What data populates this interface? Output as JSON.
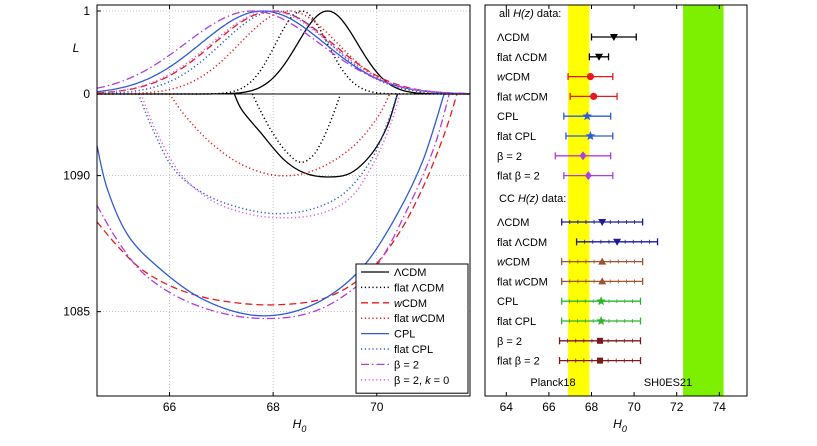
{
  "chart_data": [
    {
      "type": "line",
      "xlabel": "H_0",
      "xlim": [
        64.6,
        71.8
      ],
      "x_ticks": [
        "66",
        "68",
        "70"
      ],
      "top_panel": {
        "ylabel": "L",
        "y_ticks": [
          "0",
          "1"
        ],
        "ylim": [
          0,
          1
        ]
      },
      "bottom_panel": {
        "y_ticks": [
          "1090",
          "1085"
        ],
        "ylim": [
          1081.9,
          1093
        ],
        "inverted": true
      },
      "legend_position": "bottom-right",
      "series": [
        {
          "name": "ΛCDM",
          "label_parts": [
            "ΛCDM"
          ],
          "color": "#000000",
          "dash": "solid",
          "likelihood": {
            "mean": 69.05,
            "sigma": 0.58
          },
          "contour": [
            [
              67.25,
              1093
            ],
            [
              67.4,
              1092.4
            ],
            [
              67.75,
              1091.6
            ],
            [
              68.2,
              1090.6
            ],
            [
              68.6,
              1090.1
            ],
            [
              69.05,
              1089.95
            ],
            [
              69.5,
              1090.1
            ],
            [
              69.9,
              1090.8
            ],
            [
              70.2,
              1091.8
            ],
            [
              70.4,
              1093
            ]
          ]
        },
        {
          "name": "flat ΛCDM",
          "label_parts": [
            "flat ΛCDM"
          ],
          "color": "#000000",
          "dash": "dotted",
          "likelihood": {
            "mean": 68.55,
            "sigma": 0.5
          },
          "contour": [
            [
              67.6,
              1093
            ],
            [
              67.75,
              1092.4
            ],
            [
              67.95,
              1091.7
            ],
            [
              68.2,
              1091.0
            ],
            [
              68.5,
              1090.5
            ],
            [
              68.75,
              1090.7
            ],
            [
              68.95,
              1091.3
            ],
            [
              69.15,
              1092.2
            ],
            [
              69.3,
              1093
            ]
          ]
        },
        {
          "name": "wCDM",
          "label_parts": [
            "w",
            "CDM"
          ],
          "color": "#e8191c",
          "dash": "dashed",
          "likelihood": {
            "mean": 68.0,
            "sigma": 1.15
          },
          "contour": [
            [
              64.6,
              1088.3
            ],
            [
              65.0,
              1087.4
            ],
            [
              65.5,
              1086.5
            ],
            [
              66.2,
              1085.8
            ],
            [
              67.0,
              1085.4
            ],
            [
              68.0,
              1085.25
            ],
            [
              69.0,
              1085.5
            ],
            [
              69.8,
              1086.4
            ],
            [
              70.4,
              1087.8
            ],
            [
              70.9,
              1089.6
            ],
            [
              71.3,
              1091.5
            ],
            [
              71.55,
              1093
            ]
          ]
        },
        {
          "name": "flat wCDM",
          "label_parts": [
            "flat ",
            "w",
            "CDM"
          ],
          "color": "#e8191c",
          "dash": "dotted",
          "likelihood": {
            "mean": 68.3,
            "sigma": 0.95
          },
          "contour": [
            [
              66.0,
              1093
            ],
            [
              66.3,
              1092.2
            ],
            [
              66.8,
              1091.2
            ],
            [
              67.4,
              1090.4
            ],
            [
              68.1,
              1090.0
            ],
            [
              68.8,
              1090.2
            ],
            [
              69.5,
              1091.0
            ],
            [
              70.0,
              1092.1
            ],
            [
              70.25,
              1093
            ]
          ]
        },
        {
          "name": "CPL",
          "label_parts": [
            "CPL"
          ],
          "color": "#2d5bd8",
          "dash": "solid",
          "likelihood": {
            "mean": 67.8,
            "sigma": 1.2
          },
          "contour": [
            [
              64.6,
              1091.1
            ],
            [
              64.8,
              1089.5
            ],
            [
              65.2,
              1087.8
            ],
            [
              65.8,
              1086.6
            ],
            [
              66.6,
              1085.5
            ],
            [
              67.5,
              1084.9
            ],
            [
              68.3,
              1084.95
            ],
            [
              69.1,
              1085.6
            ],
            [
              69.8,
              1086.8
            ],
            [
              70.4,
              1088.6
            ],
            [
              70.9,
              1090.6
            ],
            [
              71.3,
              1093
            ]
          ]
        },
        {
          "name": "flat CPL",
          "label_parts": [
            "flat CPL"
          ],
          "color": "#2d5bd8",
          "dash": "dotted",
          "likelihood": {
            "mean": 68.05,
            "sigma": 1.05
          },
          "contour": [
            [
              65.4,
              1093
            ],
            [
              65.7,
              1091.6
            ],
            [
              66.1,
              1090.2
            ],
            [
              66.7,
              1089.3
            ],
            [
              67.4,
              1088.8
            ],
            [
              68.1,
              1088.6
            ],
            [
              68.8,
              1088.8
            ],
            [
              69.4,
              1089.4
            ],
            [
              69.9,
              1090.6
            ],
            [
              70.2,
              1091.9
            ],
            [
              70.4,
              1093
            ]
          ]
        },
        {
          "name": "β = 2",
          "label_parts": [
            "β = 2"
          ],
          "color": "#b23ce0",
          "dash": "dashdot",
          "likelihood": {
            "mean": 67.6,
            "sigma": 1.3
          },
          "contour": [
            [
              64.6,
              1088.9
            ],
            [
              65.0,
              1087.6
            ],
            [
              65.5,
              1086.4
            ],
            [
              66.2,
              1085.5
            ],
            [
              67.0,
              1084.95
            ],
            [
              67.8,
              1084.75
            ],
            [
              68.6,
              1084.9
            ],
            [
              69.3,
              1085.5
            ],
            [
              70.0,
              1086.7
            ],
            [
              70.6,
              1088.8
            ],
            [
              71.1,
              1091.0
            ],
            [
              71.4,
              1093
            ]
          ]
        },
        {
          "name": "β = 2, k = 0",
          "label_parts": [
            "β = 2, ",
            "k",
            " = 0"
          ],
          "color": "#e25de6",
          "dash": "dotted",
          "likelihood": {
            "mean": 67.95,
            "sigma": 1.15
          },
          "contour": [
            [
              65.45,
              1093
            ],
            [
              65.75,
              1091.6
            ],
            [
              66.2,
              1090.1
            ],
            [
              66.8,
              1089.1
            ],
            [
              67.5,
              1088.6
            ],
            [
              68.2,
              1088.45
            ],
            [
              68.9,
              1088.6
            ],
            [
              69.5,
              1089.2
            ],
            [
              69.95,
              1090.5
            ],
            [
              70.25,
              1091.8
            ],
            [
              70.45,
              1093
            ]
          ]
        }
      ]
    },
    {
      "type": "scatter",
      "xlabel": "H_0",
      "xlim": [
        63.0,
        75.3
      ],
      "x_ticks": [
        "64",
        "66",
        "68",
        "70",
        "72",
        "74"
      ],
      "bands": [
        {
          "name": "Planck18",
          "range": [
            66.9,
            67.9
          ],
          "color": "#ffff00"
        },
        {
          "name": "SH0ES21",
          "range": [
            72.3,
            74.2
          ],
          "color": "#7cf000"
        }
      ],
      "band_labels": [
        "Planck18",
        "SH0ES21"
      ],
      "groups": [
        {
          "header": "all  H(z) data:",
          "header_parts": [
            "all  ",
            "H(z)",
            " data:"
          ],
          "points": [
            {
              "label_parts": [
                "ΛCDM"
              ],
              "value": 69.05,
              "lo": 68.0,
              "hi": 70.1,
              "color": "#000000",
              "marker": "triangle-down"
            },
            {
              "label_parts": [
                "flat ΛCDM"
              ],
              "value": 68.35,
              "lo": 67.9,
              "hi": 68.8,
              "color": "#000000",
              "marker": "triangle-down"
            },
            {
              "label_parts": [
                "w",
                "CDM"
              ],
              "value": 67.95,
              "lo": 66.9,
              "hi": 69.0,
              "color": "#e8191c",
              "marker": "circle"
            },
            {
              "label_parts": [
                "flat ",
                "w",
                "CDM"
              ],
              "value": 68.1,
              "lo": 67.0,
              "hi": 69.2,
              "color": "#e8191c",
              "marker": "circle"
            },
            {
              "label_parts": [
                "CPL"
              ],
              "value": 67.8,
              "lo": 66.7,
              "hi": 68.9,
              "color": "#2d5bd8",
              "marker": "star"
            },
            {
              "label_parts": [
                "flat CPL"
              ],
              "value": 67.95,
              "lo": 66.8,
              "hi": 69.0,
              "color": "#2d5bd8",
              "marker": "star"
            },
            {
              "label_parts": [
                "β = 2"
              ],
              "value": 67.6,
              "lo": 66.3,
              "hi": 68.9,
              "color": "#b23ce0",
              "marker": "diamond"
            },
            {
              "label_parts": [
                "flat β = 2"
              ],
              "value": 67.85,
              "lo": 66.7,
              "hi": 69.0,
              "color": "#b23ce0",
              "marker": "diamond"
            }
          ]
        },
        {
          "header": "CC  H(z) data:",
          "header_parts": [
            "CC  ",
            "H(z)",
            " data:"
          ],
          "points": [
            {
              "label_parts": [
                "ΛCDM"
              ],
              "value": 68.5,
              "lo": 66.6,
              "hi": 70.4,
              "color": "#1a1a9c",
              "marker": "triangle-down"
            },
            {
              "label_parts": [
                "flat ΛCDM"
              ],
              "value": 69.2,
              "lo": 67.3,
              "hi": 71.1,
              "color": "#1a1a9c",
              "marker": "triangle-down"
            },
            {
              "label_parts": [
                "w",
                "CDM"
              ],
              "value": 68.5,
              "lo": 66.6,
              "hi": 70.4,
              "color": "#a0522d",
              "marker": "triangle-up"
            },
            {
              "label_parts": [
                "flat ",
                "w",
                "CDM"
              ],
              "value": 68.5,
              "lo": 66.6,
              "hi": 70.4,
              "color": "#a0522d",
              "marker": "triangle-up"
            },
            {
              "label_parts": [
                "CPL"
              ],
              "value": 68.45,
              "lo": 66.6,
              "hi": 70.3,
              "color": "#2db52d",
              "marker": "star"
            },
            {
              "label_parts": [
                "flat CPL"
              ],
              "value": 68.45,
              "lo": 66.6,
              "hi": 70.3,
              "color": "#2db52d",
              "marker": "star"
            },
            {
              "label_parts": [
                "β = 2"
              ],
              "value": 68.4,
              "lo": 66.5,
              "hi": 70.3,
              "color": "#7a1a1a",
              "marker": "square"
            },
            {
              "label_parts": [
                "flat β = 2"
              ],
              "value": 68.4,
              "lo": 66.5,
              "hi": 70.3,
              "color": "#7a1a1a",
              "marker": "square"
            }
          ]
        }
      ]
    }
  ]
}
